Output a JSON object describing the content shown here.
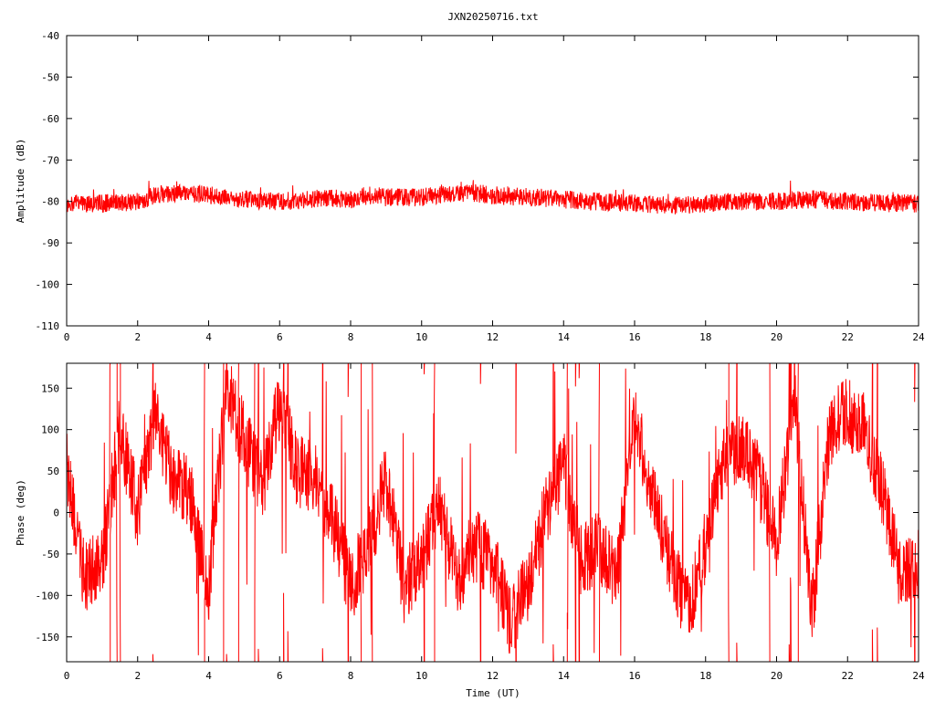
{
  "title": "JXN20250716.txt",
  "colors": {
    "series": "#ff0000",
    "axes": "#000000",
    "background": "#ffffff"
  },
  "chart_data": [
    {
      "type": "line",
      "title": "JXN20250716.txt",
      "xlabel": "",
      "ylabel": "Amplitude (dB)",
      "xlim": [
        0,
        24
      ],
      "ylim": [
        -110,
        -40
      ],
      "xticks": [
        "0",
        "2",
        "4",
        "6",
        "8",
        "10",
        "12",
        "14",
        "16",
        "18",
        "20",
        "22",
        "24"
      ],
      "yticks": [
        "-40",
        "-50",
        "-60",
        "-70",
        "-80",
        "-90",
        "-100",
        "-110"
      ],
      "grid": false,
      "series": [
        {
          "x": [
            0,
            1,
            2,
            2.5,
            3,
            3.5,
            4,
            5,
            6,
            7,
            7.2,
            8,
            8.5,
            9,
            10,
            11,
            11.5,
            12,
            13,
            14,
            15,
            16,
            17,
            18,
            19,
            20,
            21,
            22,
            23,
            24
          ],
          "y": [
            -80.5,
            -80.5,
            -80,
            -78.5,
            -78,
            -78,
            -78.5,
            -79.5,
            -80,
            -79.5,
            -79,
            -79.5,
            -78.5,
            -79,
            -79,
            -78,
            -78,
            -78.5,
            -79,
            -79.5,
            -80,
            -80.5,
            -81,
            -80.5,
            -80,
            -80,
            -79.5,
            -80,
            -80.5,
            -80.5
          ],
          "noise_dB": 2.2
        }
      ]
    },
    {
      "type": "line",
      "title": "",
      "xlabel": "Time (UT)",
      "ylabel": "Phase (deg)",
      "xlim": [
        0,
        24
      ],
      "ylim": [
        -180,
        180
      ],
      "xticks": [
        "0",
        "2",
        "4",
        "6",
        "8",
        "10",
        "12",
        "14",
        "16",
        "18",
        "20",
        "22",
        "24"
      ],
      "yticks": [
        "150",
        "100",
        "50",
        "0",
        "-50",
        "-100",
        "-150"
      ],
      "grid": false,
      "series": [
        {
          "x": [
            0,
            0.5,
            1,
            1.5,
            2,
            2.5,
            3,
            3.5,
            4,
            4.5,
            5,
            5.5,
            6,
            6.5,
            7,
            7.5,
            8,
            8.5,
            9,
            9.5,
            10,
            10.5,
            11,
            11.5,
            12,
            12.5,
            13,
            13.5,
            14,
            14.5,
            15,
            15.5,
            16,
            16.5,
            17,
            17.5,
            18,
            18.5,
            19,
            19.5,
            20,
            20.5,
            21,
            21.5,
            22,
            22.5,
            23,
            23.5,
            24
          ],
          "y": [
            60,
            -80,
            -60,
            100,
            0,
            120,
            40,
            20,
            -90,
            150,
            90,
            30,
            130,
            50,
            40,
            -10,
            -90,
            -40,
            40,
            -90,
            -60,
            10,
            -80,
            -40,
            -60,
            -130,
            -90,
            0,
            60,
            -60,
            -40,
            -80,
            120,
            20,
            -60,
            -120,
            -40,
            60,
            80,
            40,
            -40,
            140,
            -120,
            100,
            120,
            100,
            20,
            -80,
            -60
          ],
          "noise_deg": 45,
          "wraps": true
        }
      ]
    }
  ]
}
